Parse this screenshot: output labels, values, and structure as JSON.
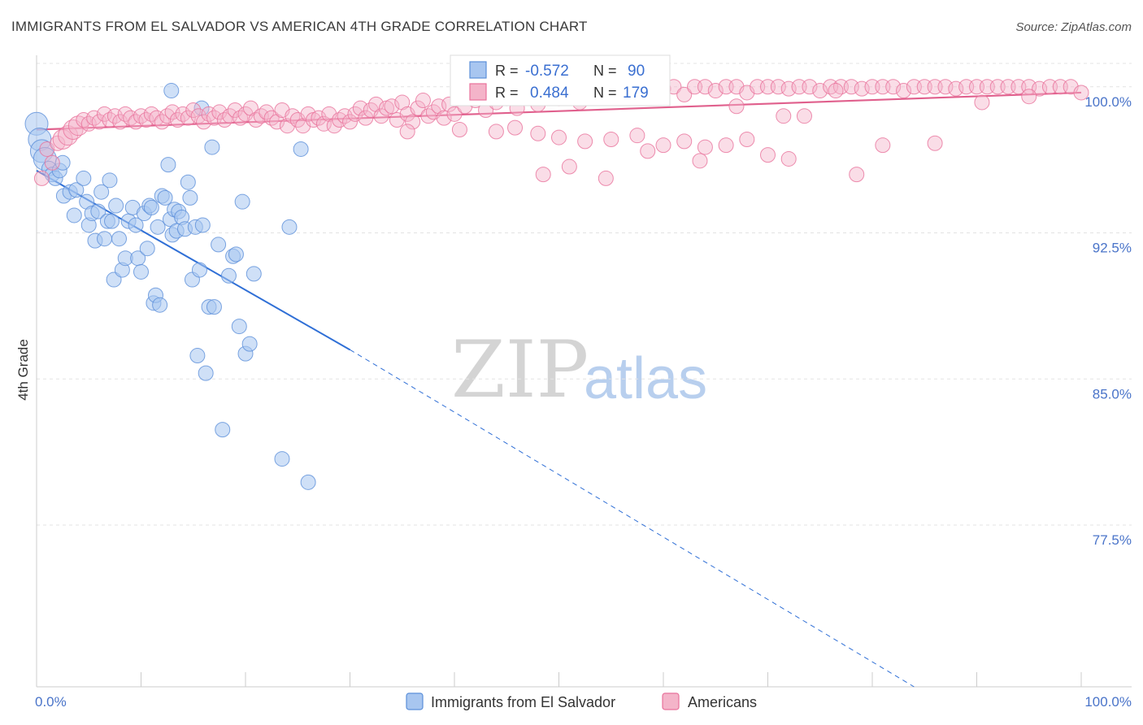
{
  "title": "IMMIGRANTS FROM EL SALVADOR VS AMERICAN 4TH GRADE CORRELATION CHART",
  "source": "Source: ZipAtlas.com",
  "colors": {
    "blue": "#5b8fd9",
    "blue_fill": "#a8c6f0",
    "pink": "#e8729b",
    "pink_fill": "#f4b4c9",
    "grid": "#e3e3e3"
  },
  "watermark": {
    "zip": "ZIP",
    "atlas": "atlas"
  },
  "stats": {
    "blue": {
      "r_label": "R =",
      "r_value": "-0.572",
      "n_label": "N =",
      "n_value": "90"
    },
    "pink": {
      "r_label": "R =",
      "r_value": "0.484",
      "n_label": "N =",
      "n_value": "179"
    }
  },
  "legend": [
    {
      "label": "Immigrants from El Salvador",
      "color": "blue"
    },
    {
      "label": "Americans",
      "color": "pink"
    }
  ],
  "chart_data": {
    "type": "scatter",
    "title": "IMMIGRANTS FROM EL SALVADOR VS AMERICAN 4TH GRADE CORRELATION CHART",
    "xlabel": "",
    "ylabel": "4th Grade",
    "xlim": [
      0,
      100
    ],
    "ylim": [
      69.2,
      101.2
    ],
    "x_tick_labels": [
      "0.0%",
      "100.0%"
    ],
    "y_ticks": [
      77.5,
      85.0,
      92.5,
      100.0
    ],
    "y_tick_labels": [
      "77.5%",
      "85.0%",
      "92.5%",
      "100.0%"
    ],
    "grid": true,
    "legend_position": "bottom-center",
    "series": [
      {
        "name": "Immigrants from El Salvador",
        "color": "blue",
        "trend": {
          "x0": 0,
          "y0": 95.7,
          "x1": 30,
          "y1": 86.5,
          "dashed_to_x": 84,
          "dashed_to_y": 69.2
        },
        "points": [
          [
            0.0,
            98.1
          ],
          [
            0.3,
            97.3
          ],
          [
            0.5,
            96.7
          ],
          [
            0.8,
            96.3
          ],
          [
            1.2,
            95.8
          ],
          [
            1.5,
            95.5
          ],
          [
            1.8,
            95.3
          ],
          [
            2.2,
            95.7
          ],
          [
            2.5,
            96.1
          ],
          [
            2.6,
            94.4
          ],
          [
            3.2,
            94.6
          ],
          [
            3.6,
            93.4
          ],
          [
            3.8,
            94.7
          ],
          [
            4.5,
            95.3
          ],
          [
            4.8,
            94.1
          ],
          [
            5.0,
            92.9
          ],
          [
            5.3,
            93.5
          ],
          [
            5.6,
            92.1
          ],
          [
            5.9,
            93.6
          ],
          [
            6.2,
            94.6
          ],
          [
            6.5,
            92.2
          ],
          [
            6.8,
            93.1
          ],
          [
            7.0,
            95.2
          ],
          [
            7.2,
            93.1
          ],
          [
            7.4,
            90.1
          ],
          [
            7.6,
            93.9
          ],
          [
            7.9,
            92.2
          ],
          [
            8.2,
            90.6
          ],
          [
            8.5,
            91.2
          ],
          [
            8.8,
            93.1
          ],
          [
            9.2,
            93.8
          ],
          [
            9.5,
            92.9
          ],
          [
            9.7,
            91.2
          ],
          [
            10.0,
            90.5
          ],
          [
            10.3,
            93.5
          ],
          [
            10.6,
            91.7
          ],
          [
            10.8,
            93.9
          ],
          [
            11.0,
            93.8
          ],
          [
            11.2,
            88.9
          ],
          [
            11.4,
            89.3
          ],
          [
            11.6,
            92.8
          ],
          [
            11.8,
            88.8
          ],
          [
            12.0,
            94.4
          ],
          [
            12.3,
            94.3
          ],
          [
            12.6,
            96.0
          ],
          [
            12.8,
            93.2
          ],
          [
            13.0,
            92.4
          ],
          [
            13.2,
            93.7
          ],
          [
            13.4,
            92.6
          ],
          [
            13.6,
            93.6
          ],
          [
            13.9,
            93.3
          ],
          [
            14.2,
            92.7
          ],
          [
            14.5,
            95.1
          ],
          [
            14.7,
            94.3
          ],
          [
            14.9,
            90.1
          ],
          [
            15.2,
            92.8
          ],
          [
            15.4,
            86.2
          ],
          [
            15.6,
            90.6
          ],
          [
            15.9,
            92.9
          ],
          [
            16.2,
            85.3
          ],
          [
            16.5,
            88.7
          ],
          [
            16.8,
            96.9
          ],
          [
            17.0,
            88.7
          ],
          [
            17.4,
            91.9
          ],
          [
            17.8,
            82.4
          ],
          [
            18.4,
            90.3
          ],
          [
            18.8,
            91.3
          ],
          [
            19.1,
            91.4
          ],
          [
            19.4,
            87.7
          ],
          [
            19.7,
            94.1
          ],
          [
            20.0,
            86.3
          ],
          [
            20.4,
            86.8
          ],
          [
            20.8,
            90.4
          ],
          [
            23.5,
            80.9
          ],
          [
            24.2,
            92.8
          ],
          [
            25.3,
            96.8
          ],
          [
            26.0,
            79.7
          ],
          [
            12.9,
            99.8
          ],
          [
            15.8,
            98.9
          ]
        ]
      },
      {
        "name": "Americans",
        "color": "pink",
        "trend": {
          "x0": 0,
          "y0": 97.8,
          "x1": 100,
          "y1": 99.7
        },
        "points": [
          [
            0.5,
            95.3
          ],
          [
            1.0,
            96.8
          ],
          [
            1.5,
            96.1
          ],
          [
            2.0,
            97.1
          ],
          [
            2.5,
            97.3
          ],
          [
            3.0,
            97.5
          ],
          [
            3.5,
            97.8
          ],
          [
            4.0,
            98.0
          ],
          [
            4.5,
            98.3
          ],
          [
            5.0,
            98.1
          ],
          [
            5.5,
            98.4
          ],
          [
            6.0,
            98.2
          ],
          [
            6.5,
            98.6
          ],
          [
            7.0,
            98.3
          ],
          [
            7.5,
            98.5
          ],
          [
            8.0,
            98.2
          ],
          [
            8.5,
            98.6
          ],
          [
            9.0,
            98.4
          ],
          [
            9.5,
            98.2
          ],
          [
            10.0,
            98.5
          ],
          [
            10.5,
            98.3
          ],
          [
            11.0,
            98.6
          ],
          [
            11.5,
            98.4
          ],
          [
            12.0,
            98.2
          ],
          [
            12.5,
            98.5
          ],
          [
            13.0,
            98.7
          ],
          [
            13.5,
            98.3
          ],
          [
            14.0,
            98.6
          ],
          [
            14.5,
            98.4
          ],
          [
            15.0,
            98.8
          ],
          [
            15.5,
            98.5
          ],
          [
            16.0,
            98.2
          ],
          [
            16.5,
            98.6
          ],
          [
            17.0,
            98.4
          ],
          [
            17.5,
            98.7
          ],
          [
            18.0,
            98.3
          ],
          [
            18.5,
            98.5
          ],
          [
            19.0,
            98.8
          ],
          [
            19.5,
            98.4
          ],
          [
            20.0,
            98.6
          ],
          [
            20.5,
            98.9
          ],
          [
            21.0,
            98.3
          ],
          [
            21.5,
            98.5
          ],
          [
            22.0,
            98.7
          ],
          [
            22.5,
            98.4
          ],
          [
            23.0,
            98.2
          ],
          [
            23.5,
            98.8
          ],
          [
            24.0,
            98.0
          ],
          [
            24.5,
            98.5
          ],
          [
            25.0,
            98.3
          ],
          [
            25.5,
            98.0
          ],
          [
            26.0,
            98.6
          ],
          [
            26.5,
            98.3
          ],
          [
            27.0,
            98.4
          ],
          [
            27.5,
            98.1
          ],
          [
            28.0,
            98.6
          ],
          [
            28.5,
            98.0
          ],
          [
            29.0,
            98.3
          ],
          [
            29.5,
            98.5
          ],
          [
            30.0,
            98.2
          ],
          [
            30.5,
            98.6
          ],
          [
            31.0,
            98.9
          ],
          [
            31.5,
            98.4
          ],
          [
            32.0,
            98.8
          ],
          [
            32.5,
            99.1
          ],
          [
            33.0,
            98.5
          ],
          [
            33.5,
            98.9
          ],
          [
            34.0,
            99.0
          ],
          [
            34.5,
            98.3
          ],
          [
            35.0,
            99.2
          ],
          [
            35.5,
            98.6
          ],
          [
            36.0,
            98.2
          ],
          [
            36.5,
            98.9
          ],
          [
            37.0,
            99.3
          ],
          [
            37.5,
            98.5
          ],
          [
            38.0,
            98.7
          ],
          [
            38.5,
            99.0
          ],
          [
            39.0,
            98.4
          ],
          [
            39.5,
            99.1
          ],
          [
            40.0,
            98.6
          ],
          [
            41.0,
            99.0
          ],
          [
            42.0,
            99.3
          ],
          [
            43.0,
            98.8
          ],
          [
            44.0,
            99.2
          ],
          [
            45.0,
            99.4
          ],
          [
            46.0,
            98.9
          ],
          [
            47.0,
            99.5
          ],
          [
            48.0,
            99.1
          ],
          [
            49.0,
            99.6
          ],
          [
            50.0,
            99.4
          ],
          [
            51.0,
            99.8
          ],
          [
            52.0,
            99.2
          ],
          [
            53.0,
            100.0
          ],
          [
            54.0,
            99.6
          ],
          [
            55.0,
            100.0
          ],
          [
            56.0,
            99.5
          ],
          [
            57.0,
            100.0
          ],
          [
            58.0,
            99.7
          ],
          [
            59.0,
            100.0
          ],
          [
            60.0,
            99.9
          ],
          [
            61.0,
            100.0
          ],
          [
            62.0,
            99.6
          ],
          [
            63.0,
            100.0
          ],
          [
            64.0,
            100.0
          ],
          [
            65.0,
            99.8
          ],
          [
            66.0,
            100.0
          ],
          [
            67.0,
            100.0
          ],
          [
            68.0,
            99.7
          ],
          [
            69.0,
            100.0
          ],
          [
            70.0,
            100.0
          ],
          [
            71.0,
            100.0
          ],
          [
            72.0,
            99.9
          ],
          [
            73.0,
            100.0
          ],
          [
            74.0,
            100.0
          ],
          [
            75.0,
            99.8
          ],
          [
            76.0,
            100.0
          ],
          [
            77.0,
            100.0
          ],
          [
            78.0,
            100.0
          ],
          [
            79.0,
            99.9
          ],
          [
            80.0,
            100.0
          ],
          [
            81.0,
            100.0
          ],
          [
            82.0,
            100.0
          ],
          [
            83.0,
            99.8
          ],
          [
            84.0,
            100.0
          ],
          [
            85.0,
            100.0
          ],
          [
            86.0,
            100.0
          ],
          [
            87.0,
            100.0
          ],
          [
            88.0,
            99.9
          ],
          [
            89.0,
            100.0
          ],
          [
            90.0,
            100.0
          ],
          [
            91.0,
            100.0
          ],
          [
            92.0,
            100.0
          ],
          [
            93.0,
            100.0
          ],
          [
            94.0,
            100.0
          ],
          [
            95.0,
            100.0
          ],
          [
            96.0,
            99.9
          ],
          [
            97.0,
            100.0
          ],
          [
            98.0,
            100.0
          ],
          [
            99.0,
            100.0
          ],
          [
            100.0,
            99.7
          ],
          [
            35.5,
            97.7
          ],
          [
            40.5,
            97.8
          ],
          [
            44.0,
            97.7
          ],
          [
            45.8,
            97.9
          ],
          [
            48.0,
            97.6
          ],
          [
            50.0,
            97.4
          ],
          [
            52.5,
            97.2
          ],
          [
            55.0,
            97.3
          ],
          [
            57.5,
            97.5
          ],
          [
            60.0,
            97.0
          ],
          [
            62.0,
            97.2
          ],
          [
            64.0,
            96.9
          ],
          [
            66.0,
            97.0
          ],
          [
            68.0,
            97.3
          ],
          [
            70.0,
            96.5
          ],
          [
            58.5,
            96.7
          ],
          [
            63.5,
            96.2
          ],
          [
            72.0,
            96.3
          ],
          [
            48.5,
            95.5
          ],
          [
            51.0,
            95.9
          ],
          [
            54.5,
            95.3
          ],
          [
            78.5,
            95.5
          ],
          [
            71.5,
            98.5
          ],
          [
            81.0,
            97.0
          ],
          [
            86.0,
            97.1
          ],
          [
            90.5,
            99.2
          ],
          [
            95.0,
            99.5
          ],
          [
            76.5,
            99.8
          ],
          [
            73.5,
            98.5
          ],
          [
            67.0,
            99.0
          ]
        ]
      }
    ]
  }
}
